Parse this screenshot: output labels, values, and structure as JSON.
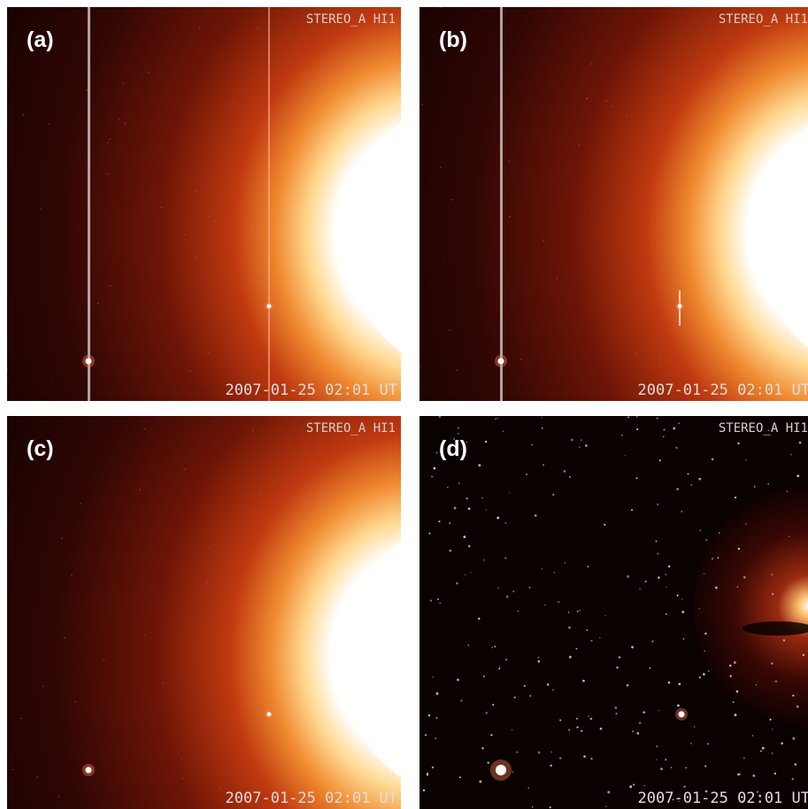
{
  "panels": [
    {
      "label": "(a)",
      "instrument": "STEREO_A HI1",
      "timestamp": "2007-01-25 02:01 UT"
    },
    {
      "label": "(b)",
      "instrument": "STEREO_A HI1",
      "timestamp": "2007-01-25 02:01 UT"
    },
    {
      "label": "(c)",
      "instrument": "STEREO_A HI1",
      "timestamp": "2007-01-25 02:01 UT"
    },
    {
      "label": "(d)",
      "instrument": "STEREO_A HI1",
      "timestamp": "2007-01-25 02:01 UT"
    }
  ]
}
